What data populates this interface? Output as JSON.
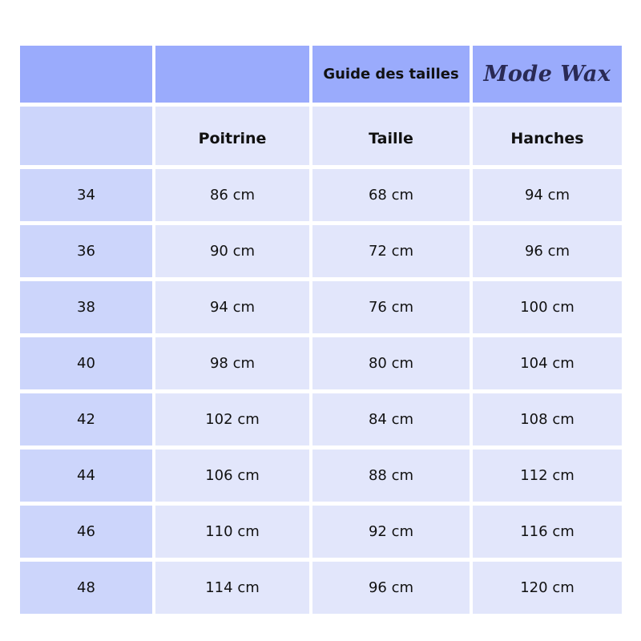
{
  "header": {
    "title": "Guide des tailles",
    "logo": "Mode Wax"
  },
  "columns": [
    "Poitrine",
    "Taille",
    "Hanches"
  ],
  "rows": [
    {
      "size": "34",
      "poitrine": "86 cm",
      "taille": "68 cm",
      "hanches": "94 cm"
    },
    {
      "size": "36",
      "poitrine": "90 cm",
      "taille": "72 cm",
      "hanches": "96 cm"
    },
    {
      "size": "38",
      "poitrine": "94 cm",
      "taille": "76 cm",
      "hanches": "100 cm"
    },
    {
      "size": "40",
      "poitrine": "98 cm",
      "taille": "80 cm",
      "hanches": "104 cm"
    },
    {
      "size": "42",
      "poitrine": "102 cm",
      "taille": "84 cm",
      "hanches": "108 cm"
    },
    {
      "size": "44",
      "poitrine": "106 cm",
      "taille": "88 cm",
      "hanches": "112 cm"
    },
    {
      "size": "46",
      "poitrine": "110 cm",
      "taille": "92 cm",
      "hanches": "116 cm"
    },
    {
      "size": "48",
      "poitrine": "114 cm",
      "taille": "96 cm",
      "hanches": "120 cm"
    }
  ],
  "colors": {
    "header": "#9aabfc",
    "first_column": "#ccd5fb",
    "cell": "#e2e6fb"
  }
}
